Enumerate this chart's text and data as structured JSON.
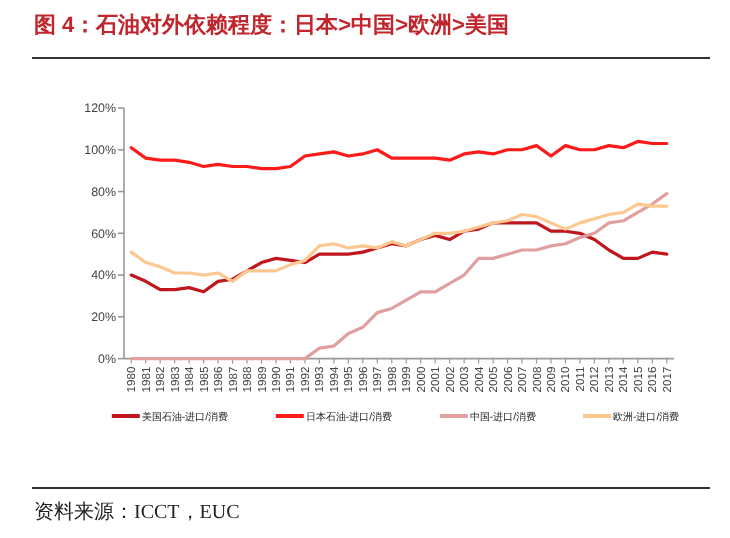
{
  "chart_data": {
    "type": "line",
    "title": "图 4：石油对外依赖程度：日本>中国>欧洲>美国",
    "categories": [
      "1980",
      "1981",
      "1982",
      "1983",
      "1984",
      "1985",
      "1986",
      "1987",
      "1988",
      "1989",
      "1990",
      "1991",
      "1992",
      "1993",
      "1994",
      "1995",
      "1996",
      "1997",
      "1998",
      "1999",
      "2000",
      "2001",
      "2002",
      "2003",
      "2004",
      "2005",
      "2006",
      "2007",
      "2008",
      "2009",
      "2010",
      "2011",
      "2012",
      "2013",
      "2014",
      "2015",
      "2016",
      "2017"
    ],
    "series": [
      {
        "name": "美国石油-进口/消费",
        "color": "#c0161e",
        "values": [
          40,
          37,
          33,
          33,
          34,
          32,
          37,
          38,
          42,
          46,
          48,
          47,
          46,
          50,
          50,
          50,
          51,
          53,
          55,
          54,
          57,
          59,
          57,
          61,
          62,
          65,
          65,
          65,
          65,
          61,
          61,
          60,
          57,
          52,
          48,
          48,
          51,
          50
        ]
      },
      {
        "name": "日本石油-进口/消费",
        "color": "#ff1a1a",
        "values": [
          101,
          96,
          95,
          95,
          94,
          92,
          93,
          92,
          92,
          91,
          91,
          92,
          97,
          98,
          99,
          97,
          98,
          100,
          96,
          96,
          96,
          96,
          95,
          98,
          99,
          98,
          100,
          100,
          102,
          97,
          102,
          100,
          100,
          102,
          101,
          104,
          103,
          103
        ]
      },
      {
        "name": "中国-进口/消费",
        "color": "#e0a0a0",
        "values": [
          0,
          0,
          0,
          0,
          0,
          0,
          0,
          0,
          0,
          0,
          0,
          0,
          0,
          5,
          6,
          12,
          15,
          22,
          24,
          28,
          32,
          32,
          36,
          40,
          48,
          48,
          50,
          52,
          52,
          54,
          55,
          58,
          60,
          65,
          66,
          70,
          74,
          79
        ]
      },
      {
        "name": "欧洲-进口/消费",
        "color": "#fcc890",
        "values": [
          51,
          46,
          44,
          41,
          41,
          40,
          41,
          37,
          42,
          42,
          42,
          45,
          47,
          54,
          55,
          53,
          54,
          53,
          56,
          54,
          57,
          60,
          60,
          61,
          63,
          65,
          66,
          69,
          68,
          65,
          62,
          65,
          67,
          69,
          70,
          74,
          73,
          73
        ]
      }
    ],
    "ylim": [
      0,
      120
    ],
    "yticks": [
      {
        "value": 0,
        "label": "0%"
      },
      {
        "value": 20,
        "label": "20%"
      },
      {
        "value": 40,
        "label": "40%"
      },
      {
        "value": 60,
        "label": "60%"
      },
      {
        "value": 80,
        "label": "80%"
      },
      {
        "value": 100,
        "label": "100%"
      },
      {
        "value": 120,
        "label": "120%"
      }
    ],
    "legend": "bottom",
    "annotations": [
      "资料来源：ICCT，EUC"
    ]
  }
}
